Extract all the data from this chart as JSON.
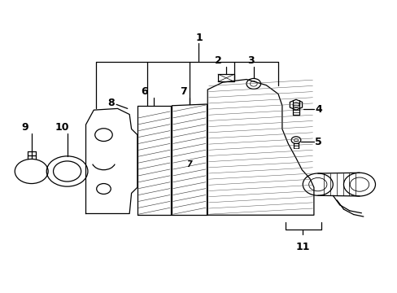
{
  "bg_color": "#ffffff",
  "line_color": "#000000",
  "figsize": [
    4.89,
    3.6
  ],
  "dpi": 100
}
